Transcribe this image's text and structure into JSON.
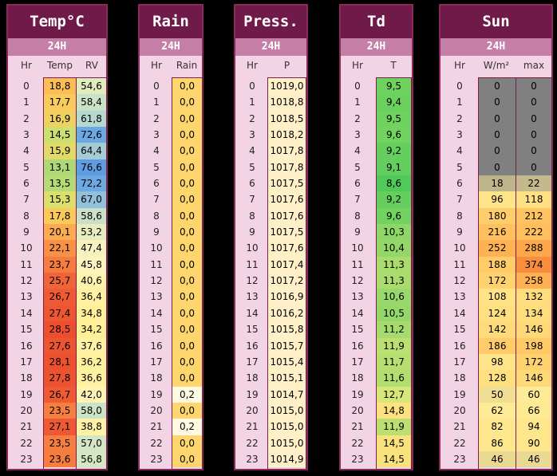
{
  "hours": [
    "0",
    "1",
    "2",
    "3",
    "4",
    "5",
    "6",
    "7",
    "8",
    "9",
    "10",
    "11",
    "12",
    "13",
    "14",
    "15",
    "16",
    "17",
    "18",
    "19",
    "20",
    "21",
    "22",
    "23"
  ],
  "panels": {
    "temp": {
      "title": "Temp°C",
      "period": "24H",
      "hr_label": "Hr",
      "temp_label": "Temp",
      "rv_label": "RV",
      "temp": [
        "18,8",
        "17,7",
        "16,9",
        "14,5",
        "15,9",
        "13,1",
        "13,5",
        "15,3",
        "17,8",
        "20,1",
        "22,1",
        "23,7",
        "25,7",
        "26,7",
        "27,4",
        "28,5",
        "27,6",
        "28,1",
        "27,8",
        "26,7",
        "23,5",
        "27,1",
        "23,5",
        "23,6"
      ],
      "rv": [
        "54,6",
        "58,4",
        "61,8",
        "72,6",
        "64,4",
        "76,6",
        "72,2",
        "67,0",
        "58,6",
        "53,2",
        "47,4",
        "45,8",
        "40,6",
        "36,4",
        "34,8",
        "34,2",
        "37,6",
        "36,2",
        "36,6",
        "42,0",
        "58,0",
        "38,8",
        "57,0",
        "56,8"
      ]
    },
    "rain": {
      "title": "Rain",
      "period": "24H",
      "hr_label": "Hr",
      "rain_label": "Rain",
      "rain": [
        "0,0",
        "0,0",
        "0,0",
        "0,0",
        "0,0",
        "0,0",
        "0,0",
        "0,0",
        "0,0",
        "0,0",
        "0,0",
        "0,0",
        "0,0",
        "0,0",
        "0,0",
        "0,0",
        "0,0",
        "0,0",
        "0,0",
        "0,2",
        "0,0",
        "0,2",
        "0,0",
        "0,0"
      ]
    },
    "press": {
      "title": "Press.",
      "period": "24H",
      "hr_label": "Hr",
      "p_label": "P",
      "p": [
        "1019,0",
        "1018,8",
        "1018,5",
        "1018,2",
        "1017,8",
        "1017,8",
        "1017,5",
        "1017,6",
        "1017,6",
        "1017,5",
        "1017,6",
        "1017,4",
        "1017,2",
        "1016,9",
        "1016,2",
        "1015,8",
        "1015,7",
        "1015,4",
        "1015,1",
        "1014,7",
        "1015,0",
        "1015,0",
        "1015,0",
        "1014,9"
      ]
    },
    "td": {
      "title": "Td",
      "period": "24H",
      "hr_label": "Hr",
      "t_label": "T",
      "t": [
        "9,5",
        "9,4",
        "9,5",
        "9,6",
        "9,2",
        "9,1",
        "8,6",
        "9,2",
        "9,6",
        "10,3",
        "10,4",
        "11,3",
        "11,3",
        "10,6",
        "10,5",
        "11,2",
        "11,9",
        "11,7",
        "11,6",
        "12,7",
        "14,8",
        "11,9",
        "14,5",
        "14,5"
      ]
    },
    "sun": {
      "title": "Sun",
      "period": "24H",
      "hr_label": "Hr",
      "w_label": "W/m²",
      "max_label": "max",
      "w": [
        "0",
        "0",
        "0",
        "0",
        "0",
        "0",
        "18",
        "96",
        "180",
        "216",
        "252",
        "188",
        "172",
        "108",
        "124",
        "142",
        "186",
        "98",
        "128",
        "50",
        "62",
        "82",
        "86",
        "46"
      ],
      "max": [
        "0",
        "0",
        "0",
        "0",
        "0",
        "0",
        "22",
        "118",
        "212",
        "222",
        "288",
        "374",
        "258",
        "132",
        "134",
        "146",
        "198",
        "172",
        "146",
        "60",
        "66",
        "94",
        "90",
        "46"
      ]
    }
  },
  "colors": {
    "panel_bg": "#f2d4e4",
    "title_bg": "#6f1a48",
    "subtitle_bg": "#c57ea5",
    "border": "#8a2a5c"
  }
}
